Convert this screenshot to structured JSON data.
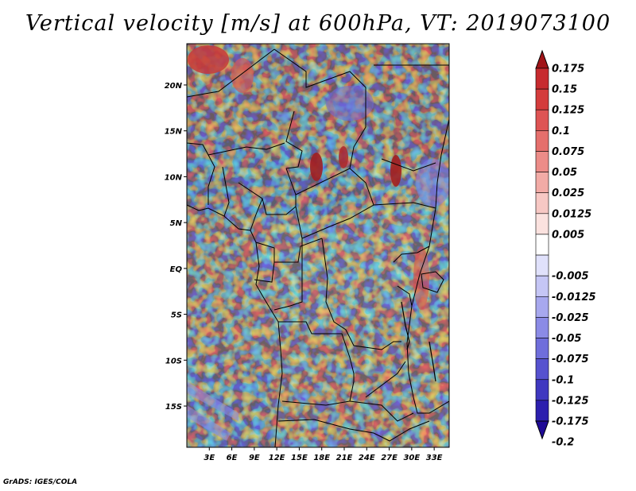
{
  "title": "Vertical velocity [m/s] at 600hPa, VT: 2019073100",
  "credit": "GrADS: IGES/COLA",
  "map": {
    "lon_range": [
      0,
      35
    ],
    "lat_range": [
      -19.5,
      24.5
    ],
    "lat_ticks": [
      {
        "value": 20,
        "label": "20N"
      },
      {
        "value": 15,
        "label": "15N"
      },
      {
        "value": 10,
        "label": "10N"
      },
      {
        "value": 5,
        "label": "5N"
      },
      {
        "value": 0,
        "label": "EQ"
      },
      {
        "value": -5,
        "label": "5S"
      },
      {
        "value": -10,
        "label": "10S"
      },
      {
        "value": -15,
        "label": "15S"
      }
    ],
    "lon_ticks": [
      {
        "value": 3,
        "label": "3E"
      },
      {
        "value": 6,
        "label": "6E"
      },
      {
        "value": 9,
        "label": "9E"
      },
      {
        "value": 12,
        "label": "12E"
      },
      {
        "value": 15,
        "label": "15E"
      },
      {
        "value": 18,
        "label": "18E"
      },
      {
        "value": 21,
        "label": "21E"
      },
      {
        "value": 24,
        "label": "24E"
      },
      {
        "value": 27,
        "label": "27E"
      },
      {
        "value": 30,
        "label": "30E"
      },
      {
        "value": 33,
        "label": "33E"
      }
    ],
    "coast_color": "#000000"
  },
  "colorbar": {
    "max_color": "#a01418",
    "min_color": "#1f0a96",
    "levels": [
      {
        "label": "0.175",
        "color": "#b41e22"
      },
      {
        "label": "0.15",
        "color": "#c72b2f"
      },
      {
        "label": "0.125",
        "color": "#d43c3c"
      },
      {
        "label": "0.1",
        "color": "#de5454"
      },
      {
        "label": "0.075",
        "color": "#e56f6c"
      },
      {
        "label": "0.05",
        "color": "#ec8c88"
      },
      {
        "label": "0.025",
        "color": "#f2aba6"
      },
      {
        "label": "0.0125",
        "color": "#f7c8c4"
      },
      {
        "label": "0.005",
        "color": "#fbe2df"
      },
      {
        "label": "",
        "color": "#ffffff"
      },
      {
        "label": "-0.005",
        "color": "#e0e1fb"
      },
      {
        "label": "-0.0125",
        "color": "#c5c6f5"
      },
      {
        "label": "-0.025",
        "color": "#a7a8ee"
      },
      {
        "label": "-0.05",
        "color": "#8b8be6"
      },
      {
        "label": "-0.075",
        "color": "#6f6edb"
      },
      {
        "label": "-0.1",
        "color": "#5652cf"
      },
      {
        "label": "-0.125",
        "color": "#3f38c0"
      },
      {
        "label": "-0.175",
        "color": "#2c1fae"
      },
      {
        "label": "-0.2",
        "color": "#1f0a96"
      }
    ]
  }
}
